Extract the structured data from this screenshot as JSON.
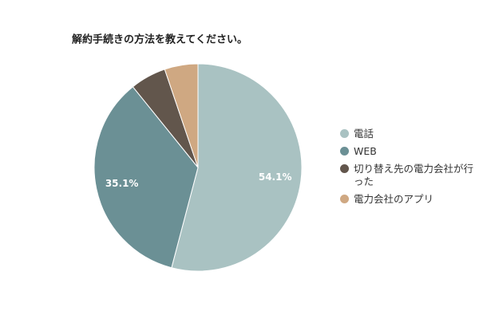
{
  "chart_data": {
    "type": "pie",
    "title": "解約手続きの方法を教えてください。",
    "categories": [
      "電話",
      "WEB",
      "切り替え先の電力会社が行った",
      "電力会社のアプリ"
    ],
    "values": [
      54.1,
      35.1,
      5.6,
      5.2
    ],
    "value_labels": [
      "54.1%",
      "35.1%",
      null,
      null
    ],
    "colors": [
      "#a9c2c2",
      "#6b9095",
      "#62564c",
      "#cfa882"
    ],
    "legend": "right"
  }
}
